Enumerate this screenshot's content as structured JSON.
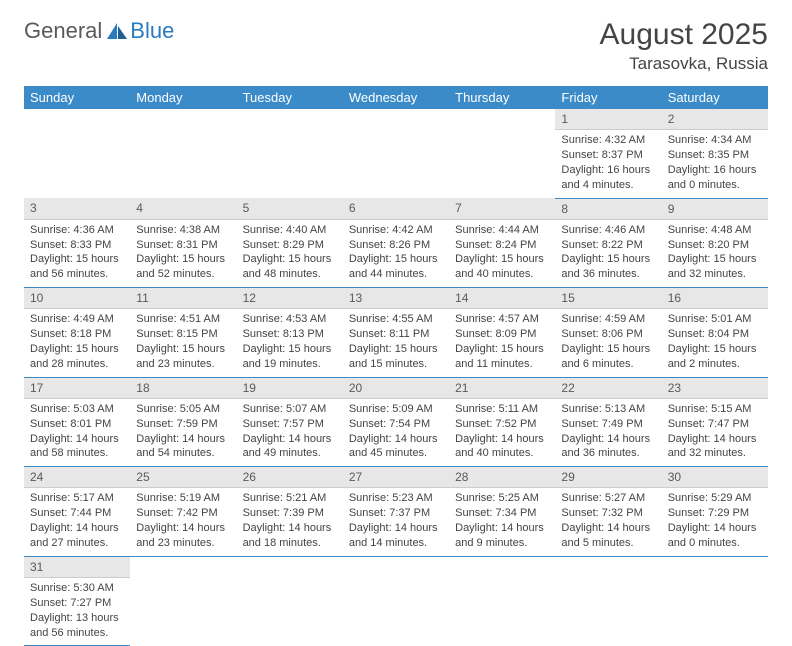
{
  "logo": {
    "text1": "General",
    "text2": "Blue"
  },
  "title": "August 2025",
  "location": "Tarasovka, Russia",
  "colors": {
    "header_bg": "#3b8bc9",
    "header_fg": "#ffffff",
    "daynum_bg": "#e7e7e7",
    "row_border": "#3b8bc9",
    "text": "#444444",
    "logo_gray": "#5a5a5a",
    "logo_blue": "#2a7bbf",
    "page_bg": "#ffffff"
  },
  "typography": {
    "title_fontsize": 30,
    "location_fontsize": 17,
    "header_fontsize": 13,
    "daynum_fontsize": 12,
    "detail_fontsize": 11
  },
  "day_headers": [
    "Sunday",
    "Monday",
    "Tuesday",
    "Wednesday",
    "Thursday",
    "Friday",
    "Saturday"
  ],
  "weeks": [
    {
      "days": [
        null,
        null,
        null,
        null,
        null,
        {
          "num": "1",
          "sunrise": "Sunrise: 4:32 AM",
          "sunset": "Sunset: 8:37 PM",
          "daylight": "Daylight: 16 hours and 4 minutes."
        },
        {
          "num": "2",
          "sunrise": "Sunrise: 4:34 AM",
          "sunset": "Sunset: 8:35 PM",
          "daylight": "Daylight: 16 hours and 0 minutes."
        }
      ]
    },
    {
      "days": [
        {
          "num": "3",
          "sunrise": "Sunrise: 4:36 AM",
          "sunset": "Sunset: 8:33 PM",
          "daylight": "Daylight: 15 hours and 56 minutes."
        },
        {
          "num": "4",
          "sunrise": "Sunrise: 4:38 AM",
          "sunset": "Sunset: 8:31 PM",
          "daylight": "Daylight: 15 hours and 52 minutes."
        },
        {
          "num": "5",
          "sunrise": "Sunrise: 4:40 AM",
          "sunset": "Sunset: 8:29 PM",
          "daylight": "Daylight: 15 hours and 48 minutes."
        },
        {
          "num": "6",
          "sunrise": "Sunrise: 4:42 AM",
          "sunset": "Sunset: 8:26 PM",
          "daylight": "Daylight: 15 hours and 44 minutes."
        },
        {
          "num": "7",
          "sunrise": "Sunrise: 4:44 AM",
          "sunset": "Sunset: 8:24 PM",
          "daylight": "Daylight: 15 hours and 40 minutes."
        },
        {
          "num": "8",
          "sunrise": "Sunrise: 4:46 AM",
          "sunset": "Sunset: 8:22 PM",
          "daylight": "Daylight: 15 hours and 36 minutes."
        },
        {
          "num": "9",
          "sunrise": "Sunrise: 4:48 AM",
          "sunset": "Sunset: 8:20 PM",
          "daylight": "Daylight: 15 hours and 32 minutes."
        }
      ]
    },
    {
      "days": [
        {
          "num": "10",
          "sunrise": "Sunrise: 4:49 AM",
          "sunset": "Sunset: 8:18 PM",
          "daylight": "Daylight: 15 hours and 28 minutes."
        },
        {
          "num": "11",
          "sunrise": "Sunrise: 4:51 AM",
          "sunset": "Sunset: 8:15 PM",
          "daylight": "Daylight: 15 hours and 23 minutes."
        },
        {
          "num": "12",
          "sunrise": "Sunrise: 4:53 AM",
          "sunset": "Sunset: 8:13 PM",
          "daylight": "Daylight: 15 hours and 19 minutes."
        },
        {
          "num": "13",
          "sunrise": "Sunrise: 4:55 AM",
          "sunset": "Sunset: 8:11 PM",
          "daylight": "Daylight: 15 hours and 15 minutes."
        },
        {
          "num": "14",
          "sunrise": "Sunrise: 4:57 AM",
          "sunset": "Sunset: 8:09 PM",
          "daylight": "Daylight: 15 hours and 11 minutes."
        },
        {
          "num": "15",
          "sunrise": "Sunrise: 4:59 AM",
          "sunset": "Sunset: 8:06 PM",
          "daylight": "Daylight: 15 hours and 6 minutes."
        },
        {
          "num": "16",
          "sunrise": "Sunrise: 5:01 AM",
          "sunset": "Sunset: 8:04 PM",
          "daylight": "Daylight: 15 hours and 2 minutes."
        }
      ]
    },
    {
      "days": [
        {
          "num": "17",
          "sunrise": "Sunrise: 5:03 AM",
          "sunset": "Sunset: 8:01 PM",
          "daylight": "Daylight: 14 hours and 58 minutes."
        },
        {
          "num": "18",
          "sunrise": "Sunrise: 5:05 AM",
          "sunset": "Sunset: 7:59 PM",
          "daylight": "Daylight: 14 hours and 54 minutes."
        },
        {
          "num": "19",
          "sunrise": "Sunrise: 5:07 AM",
          "sunset": "Sunset: 7:57 PM",
          "daylight": "Daylight: 14 hours and 49 minutes."
        },
        {
          "num": "20",
          "sunrise": "Sunrise: 5:09 AM",
          "sunset": "Sunset: 7:54 PM",
          "daylight": "Daylight: 14 hours and 45 minutes."
        },
        {
          "num": "21",
          "sunrise": "Sunrise: 5:11 AM",
          "sunset": "Sunset: 7:52 PM",
          "daylight": "Daylight: 14 hours and 40 minutes."
        },
        {
          "num": "22",
          "sunrise": "Sunrise: 5:13 AM",
          "sunset": "Sunset: 7:49 PM",
          "daylight": "Daylight: 14 hours and 36 minutes."
        },
        {
          "num": "23",
          "sunrise": "Sunrise: 5:15 AM",
          "sunset": "Sunset: 7:47 PM",
          "daylight": "Daylight: 14 hours and 32 minutes."
        }
      ]
    },
    {
      "days": [
        {
          "num": "24",
          "sunrise": "Sunrise: 5:17 AM",
          "sunset": "Sunset: 7:44 PM",
          "daylight": "Daylight: 14 hours and 27 minutes."
        },
        {
          "num": "25",
          "sunrise": "Sunrise: 5:19 AM",
          "sunset": "Sunset: 7:42 PM",
          "daylight": "Daylight: 14 hours and 23 minutes."
        },
        {
          "num": "26",
          "sunrise": "Sunrise: 5:21 AM",
          "sunset": "Sunset: 7:39 PM",
          "daylight": "Daylight: 14 hours and 18 minutes."
        },
        {
          "num": "27",
          "sunrise": "Sunrise: 5:23 AM",
          "sunset": "Sunset: 7:37 PM",
          "daylight": "Daylight: 14 hours and 14 minutes."
        },
        {
          "num": "28",
          "sunrise": "Sunrise: 5:25 AM",
          "sunset": "Sunset: 7:34 PM",
          "daylight": "Daylight: 14 hours and 9 minutes."
        },
        {
          "num": "29",
          "sunrise": "Sunrise: 5:27 AM",
          "sunset": "Sunset: 7:32 PM",
          "daylight": "Daylight: 14 hours and 5 minutes."
        },
        {
          "num": "30",
          "sunrise": "Sunrise: 5:29 AM",
          "sunset": "Sunset: 7:29 PM",
          "daylight": "Daylight: 14 hours and 0 minutes."
        }
      ]
    },
    {
      "days": [
        {
          "num": "31",
          "sunrise": "Sunrise: 5:30 AM",
          "sunset": "Sunset: 7:27 PM",
          "daylight": "Daylight: 13 hours and 56 minutes."
        },
        null,
        null,
        null,
        null,
        null,
        null
      ]
    }
  ]
}
